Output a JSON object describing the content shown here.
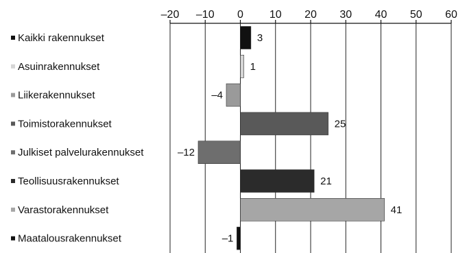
{
  "chart_data": {
    "type": "bar",
    "orientation": "horizontal",
    "categories": [
      "Kaikki rakennukset",
      "Asuinrakennukset",
      "Liikerakennukset",
      "Toimistorakennukset",
      "Julkiset palvelurakennukset",
      "Teollisuusrakennukset",
      "Varastorakennukset",
      "Maatalousrakennukset"
    ],
    "values": [
      3,
      1,
      -4,
      25,
      -12,
      21,
      41,
      -1
    ],
    "value_labels": [
      "3",
      "1",
      "–4",
      "25",
      "–12",
      "21",
      "41",
      "–1"
    ],
    "colors": [
      "#111111",
      "#d6d6d6",
      "#9a9a9a",
      "#595959",
      "#6e6e6e",
      "#2b2b2b",
      "#a6a6a6",
      "#111111"
    ],
    "xlim": [
      -20,
      60
    ],
    "xticks": [
      -20,
      -10,
      0,
      10,
      20,
      30,
      40,
      50,
      60
    ],
    "xtick_labels": [
      "–20",
      "–10",
      "0",
      "10",
      "20",
      "30",
      "40",
      "50",
      "60"
    ],
    "axis_position": "top",
    "grid": true,
    "legend": "none",
    "title": "",
    "xlabel": "",
    "ylabel": ""
  }
}
